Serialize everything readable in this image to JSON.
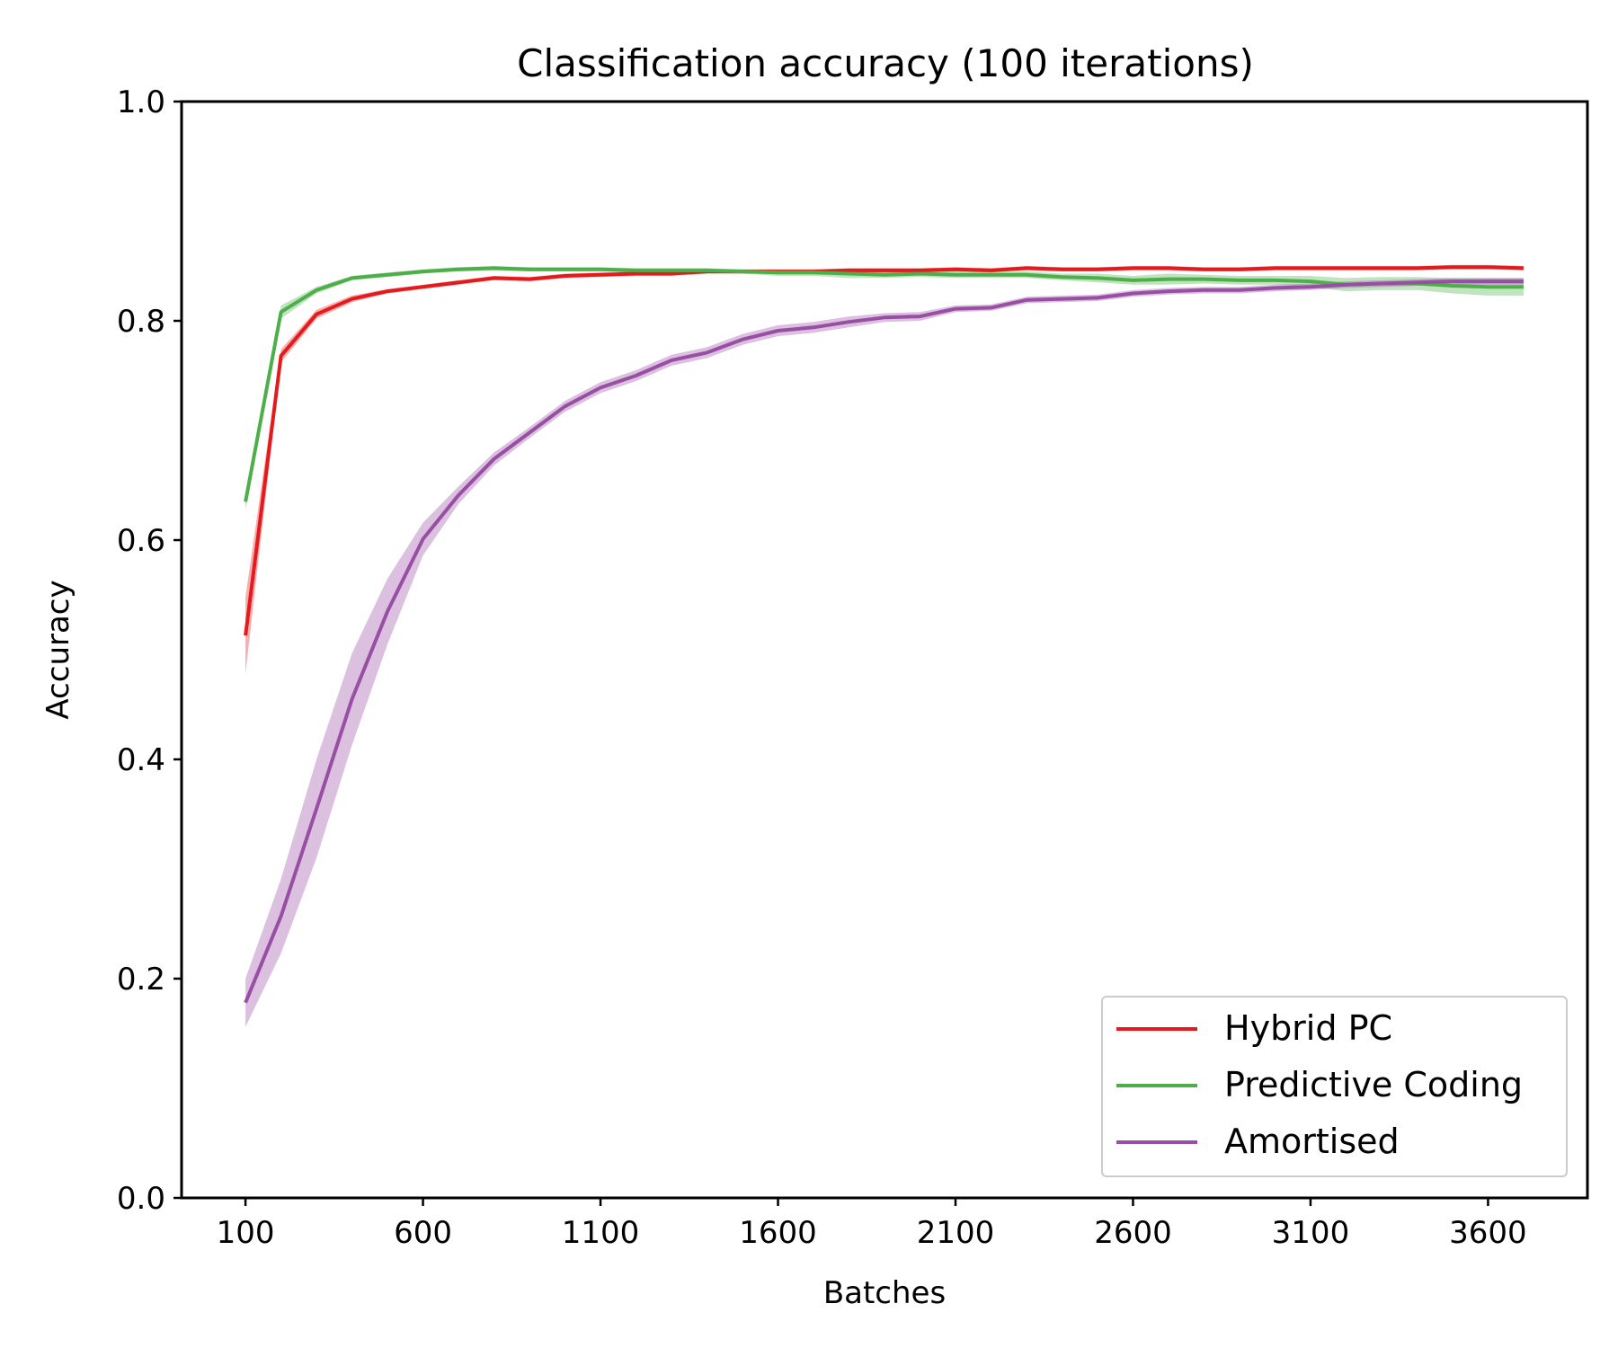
{
  "chart_data": {
    "type": "line",
    "title": "Classification accuracy (100 iterations)",
    "xlabel": "Batches",
    "ylabel": "Accuracy",
    "xlim": [
      -80,
      3880
    ],
    "ylim": [
      0.0,
      1.0
    ],
    "xticks": [
      100,
      600,
      1100,
      1600,
      2100,
      2600,
      3100,
      3600
    ],
    "xtick_labels": [
      "100",
      "600",
      "1100",
      "1600",
      "2100",
      "2600",
      "3100",
      "3600"
    ],
    "yticks": [
      0.0,
      0.2,
      0.4,
      0.6,
      0.8,
      1.0
    ],
    "ytick_labels": [
      "0.0",
      "0.2",
      "0.4",
      "0.6",
      "0.8",
      "1.0"
    ],
    "grid": false,
    "legend_position": "lower-right",
    "x": [
      100,
      200,
      300,
      400,
      500,
      600,
      700,
      800,
      900,
      1000,
      1100,
      1200,
      1300,
      1400,
      1500,
      1600,
      1700,
      1800,
      1900,
      2000,
      2100,
      2200,
      2300,
      2400,
      2500,
      2600,
      2700,
      2800,
      2900,
      3000,
      3100,
      3200,
      3300,
      3400,
      3500,
      3600,
      3700
    ],
    "series": [
      {
        "name": "Hybrid PC",
        "color": "#e41a1c",
        "values": [
          0.513,
          0.768,
          0.806,
          0.82,
          0.827,
          0.831,
          0.835,
          0.839,
          0.838,
          0.841,
          0.842,
          0.843,
          0.843,
          0.845,
          0.845,
          0.845,
          0.845,
          0.846,
          0.846,
          0.846,
          0.847,
          0.846,
          0.848,
          0.847,
          0.847,
          0.848,
          0.848,
          0.847,
          0.847,
          0.848,
          0.848,
          0.848,
          0.848,
          0.848,
          0.849,
          0.849,
          0.848
        ],
        "band": [
          0.035,
          0.006,
          0.004,
          0.003,
          0.002,
          0.002,
          0.002,
          0.002,
          0.002,
          0.002,
          0.002,
          0.002,
          0.002,
          0.002,
          0.002,
          0.002,
          0.002,
          0.002,
          0.002,
          0.002,
          0.002,
          0.002,
          0.002,
          0.002,
          0.002,
          0.002,
          0.002,
          0.002,
          0.002,
          0.002,
          0.002,
          0.002,
          0.002,
          0.002,
          0.002,
          0.002,
          0.002
        ]
      },
      {
        "name": "Predictive Coding",
        "color": "#4daf4a",
        "values": [
          0.635,
          0.808,
          0.828,
          0.839,
          0.842,
          0.845,
          0.847,
          0.848,
          0.847,
          0.847,
          0.847,
          0.846,
          0.846,
          0.846,
          0.845,
          0.844,
          0.844,
          0.843,
          0.842,
          0.843,
          0.842,
          0.842,
          0.842,
          0.84,
          0.839,
          0.837,
          0.838,
          0.838,
          0.837,
          0.837,
          0.836,
          0.833,
          0.834,
          0.834,
          0.832,
          0.831,
          0.831
        ],
        "band": [
          0.008,
          0.006,
          0.003,
          0.002,
          0.002,
          0.002,
          0.002,
          0.002,
          0.002,
          0.002,
          0.002,
          0.002,
          0.002,
          0.002,
          0.002,
          0.003,
          0.003,
          0.004,
          0.003,
          0.003,
          0.003,
          0.003,
          0.003,
          0.003,
          0.004,
          0.004,
          0.005,
          0.004,
          0.004,
          0.004,
          0.005,
          0.006,
          0.006,
          0.006,
          0.007,
          0.008,
          0.008
        ]
      },
      {
        "name": "Amortised",
        "color": "#984ea3",
        "values": [
          0.178,
          0.257,
          0.355,
          0.455,
          0.535,
          0.601,
          0.641,
          0.674,
          0.698,
          0.722,
          0.739,
          0.75,
          0.764,
          0.771,
          0.783,
          0.791,
          0.794,
          0.799,
          0.803,
          0.804,
          0.811,
          0.812,
          0.819,
          0.82,
          0.821,
          0.825,
          0.827,
          0.828,
          0.828,
          0.83,
          0.831,
          0.833,
          0.834,
          0.835,
          0.836,
          0.836,
          0.836
        ],
        "band": [
          0.022,
          0.034,
          0.045,
          0.042,
          0.03,
          0.015,
          0.008,
          0.006,
          0.005,
          0.005,
          0.005,
          0.005,
          0.005,
          0.005,
          0.005,
          0.005,
          0.005,
          0.005,
          0.004,
          0.004,
          0.003,
          0.003,
          0.003,
          0.003,
          0.003,
          0.003,
          0.003,
          0.003,
          0.003,
          0.003,
          0.003,
          0.003,
          0.003,
          0.003,
          0.003,
          0.003,
          0.003
        ]
      }
    ]
  }
}
